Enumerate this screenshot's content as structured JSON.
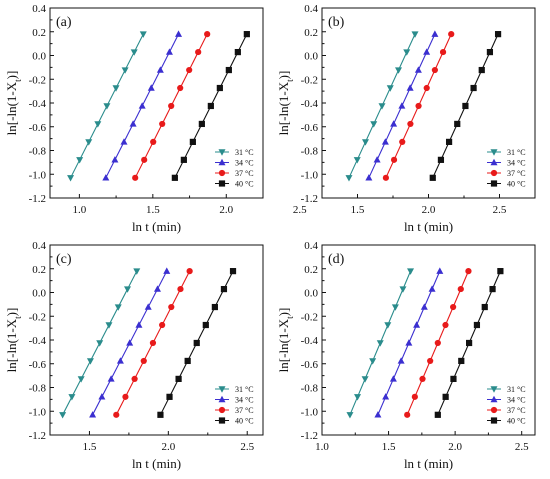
{
  "chart_data": [
    {
      "type": "line",
      "panel_label": "(a)",
      "xlabel": "ln t (min)",
      "ylabel": "ln[-ln(1-X_t)]",
      "xlim": [
        0.8,
        2.25
      ],
      "ylim": [
        -1.2,
        0.4
      ],
      "x_ticks": [
        "1.0",
        "1.5",
        "2.0",
        "2.5"
      ],
      "y_ticks": [
        "-1.2",
        "-1.0",
        "-0.8",
        "-0.6",
        "-0.4",
        "-0.2",
        "0.0",
        "0.2",
        "0.4"
      ],
      "legend_position": "bottom-right",
      "series": [
        {
          "name": "31 °C",
          "color": "#2a8c8c",
          "marker": "triangle-down",
          "x": [
            0.94,
            1.435
          ],
          "y": [
            -1.03,
            0.18
          ]
        },
        {
          "name": "34 °C",
          "color": "#3b2fd0",
          "marker": "triangle-up",
          "x": [
            1.18,
            1.675
          ],
          "y": [
            -1.03,
            0.18
          ]
        },
        {
          "name": "37 °C",
          "color": "#e81a1a",
          "marker": "circle",
          "x": [
            1.38,
            1.87
          ],
          "y": [
            -1.03,
            0.18
          ]
        },
        {
          "name": "40 °C",
          "color": "#111111",
          "marker": "square",
          "x": [
            1.65,
            2.14
          ],
          "y": [
            -1.03,
            0.18
          ]
        }
      ]
    },
    {
      "type": "line",
      "panel_label": "(b)",
      "xlabel": "ln t (min)",
      "ylabel": "ln[-ln(1-X_t)]",
      "xlim": [
        1.25,
        2.75
      ],
      "ylim": [
        -1.2,
        0.4
      ],
      "x_ticks": [
        "1.5",
        "2.0",
        "2.5"
      ],
      "y_ticks": [
        "-1.2",
        "-1.0",
        "-0.8",
        "-0.6",
        "-0.4",
        "-0.2",
        "0.0",
        "0.2",
        "0.4"
      ],
      "legend_position": "bottom-right",
      "series": [
        {
          "name": "31 °C",
          "color": "#2a8c8c",
          "marker": "triangle-down",
          "x": [
            1.44,
            1.905
          ],
          "y": [
            -1.03,
            0.18
          ]
        },
        {
          "name": "34 °C",
          "color": "#3b2fd0",
          "marker": "triangle-up",
          "x": [
            1.58,
            2.045
          ],
          "y": [
            -1.03,
            0.18
          ]
        },
        {
          "name": "37 °C",
          "color": "#e81a1a",
          "marker": "circle",
          "x": [
            1.7,
            2.16
          ],
          "y": [
            -1.03,
            0.18
          ]
        },
        {
          "name": "40 °C",
          "color": "#111111",
          "marker": "square",
          "x": [
            2.03,
            2.49
          ],
          "y": [
            -1.03,
            0.18
          ]
        }
      ]
    },
    {
      "type": "line",
      "panel_label": "(c)",
      "xlabel": "ln t (min)",
      "ylabel": "ln[-ln(1-X_t)]",
      "xlim": [
        1.25,
        2.6
      ],
      "ylim": [
        -1.2,
        0.4
      ],
      "x_ticks": [
        "1.5",
        "2.0",
        "2.5"
      ],
      "y_ticks": [
        "-1.2",
        "-1.0",
        "-0.8",
        "-0.6",
        "-0.4",
        "-0.2",
        "0.0",
        "0.2",
        "0.4"
      ],
      "legend_position": "bottom-right",
      "series": [
        {
          "name": "31 °C",
          "color": "#2a8c8c",
          "marker": "triangle-down",
          "x": [
            1.33,
            1.8
          ],
          "y": [
            -1.03,
            0.18
          ]
        },
        {
          "name": "34 °C",
          "color": "#3b2fd0",
          "marker": "triangle-up",
          "x": [
            1.52,
            1.99
          ],
          "y": [
            -1.03,
            0.18
          ]
        },
        {
          "name": "37 °C",
          "color": "#e81a1a",
          "marker": "circle",
          "x": [
            1.67,
            2.135
          ],
          "y": [
            -1.03,
            0.18
          ]
        },
        {
          "name": "40 °C",
          "color": "#111111",
          "marker": "square",
          "x": [
            1.95,
            2.41
          ],
          "y": [
            -1.03,
            0.18
          ]
        }
      ]
    },
    {
      "type": "line",
      "panel_label": "(d)",
      "xlabel": "ln t (min)",
      "ylabel": "ln[-ln(1-X_t)]",
      "xlim": [
        1.0,
        2.6
      ],
      "ylim": [
        -1.2,
        0.4
      ],
      "x_ticks": [
        "1.0",
        "1.5",
        "2.0",
        "2.5"
      ],
      "y_ticks": [
        "-1.2",
        "-1.0",
        "-0.8",
        "-0.6",
        "-0.4",
        "-0.2",
        "0.0",
        "0.2",
        "0.4"
      ],
      "legend_position": "bottom-right",
      "series": [
        {
          "name": "31 °C",
          "color": "#2a8c8c",
          "marker": "triangle-down",
          "x": [
            1.21,
            1.665
          ],
          "y": [
            -1.03,
            0.18
          ]
        },
        {
          "name": "34 °C",
          "color": "#3b2fd0",
          "marker": "triangle-up",
          "x": [
            1.42,
            1.885
          ],
          "y": [
            -1.03,
            0.18
          ]
        },
        {
          "name": "37 °C",
          "color": "#e81a1a",
          "marker": "circle",
          "x": [
            1.64,
            2.1
          ],
          "y": [
            -1.03,
            0.18
          ]
        },
        {
          "name": "40 °C",
          "color": "#111111",
          "marker": "square",
          "x": [
            1.87,
            2.34
          ],
          "y": [
            -1.03,
            0.18
          ]
        }
      ]
    }
  ]
}
